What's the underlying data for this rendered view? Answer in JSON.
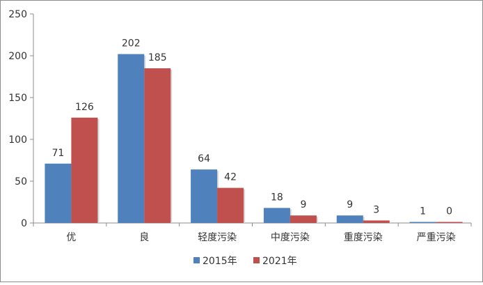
{
  "chart_data": {
    "type": "bar",
    "categories": [
      "优",
      "良",
      "轻度污染",
      "中度污染",
      "重度污染",
      "严重污染"
    ],
    "series": [
      {
        "name": "2015年",
        "color": "#4f81bd",
        "values": [
          71,
          202,
          64,
          18,
          9,
          1
        ]
      },
      {
        "name": "2021年",
        "color": "#c0504d",
        "values": [
          126,
          185,
          42,
          9,
          3,
          0
        ]
      }
    ],
    "yticks": [
      0,
      50,
      100,
      150,
      200,
      250
    ],
    "ylim": [
      0,
      250
    ],
    "grid": false,
    "legend_position": "bottom"
  }
}
